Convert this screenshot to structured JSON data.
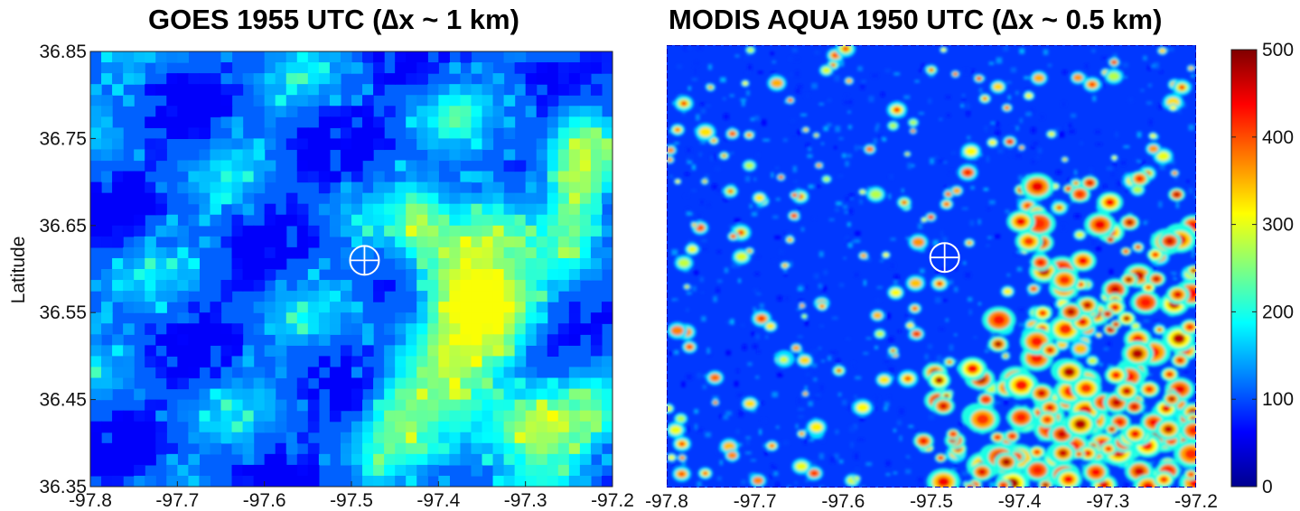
{
  "chart_data": [
    {
      "type": "heatmap",
      "title": "GOES 1955 UTC (∆x ~ 1 km)",
      "ylabel": "Latitude",
      "xlabel": "",
      "xlim": [
        -97.8,
        -97.2
      ],
      "ylim": [
        36.35,
        36.85
      ],
      "x_ticks": [
        "-97.8",
        "-97.7",
        "-97.6",
        "-97.5",
        "-97.4",
        "-97.3",
        "-97.2"
      ],
      "y_ticks": [
        "36.85",
        "36.75",
        "36.65",
        "36.55",
        "36.45",
        "36.35"
      ],
      "grid": false,
      "marker": {
        "icon": "crosshair-circle",
        "lon": -97.485,
        "lat": 36.61
      },
      "value_range": [
        0,
        500
      ]
    },
    {
      "type": "heatmap",
      "title": "MODIS AQUA 1950 UTC (∆x ~ 0.5 km)",
      "xlabel": "",
      "ylabel": "",
      "xlim": [
        -97.8,
        -97.2
      ],
      "ylim": [
        36.35,
        36.85
      ],
      "x_ticks": [
        "-97.8",
        "-97.7",
        "-97.6",
        "-97.5",
        "-97.4",
        "-97.3",
        "-97.2"
      ],
      "grid": false,
      "marker": {
        "icon": "crosshair-circle",
        "lon": -97.485,
        "lat": 36.61
      },
      "colorbar": {
        "range": [
          0,
          500
        ],
        "ticks": [
          "0",
          "100",
          "200",
          "300",
          "400",
          "500"
        ],
        "colormap": "jet",
        "colors": [
          "#00008f",
          "#0000ff",
          "#00ffff",
          "#ffff00",
          "#ff0000",
          "#800000"
        ]
      }
    }
  ]
}
